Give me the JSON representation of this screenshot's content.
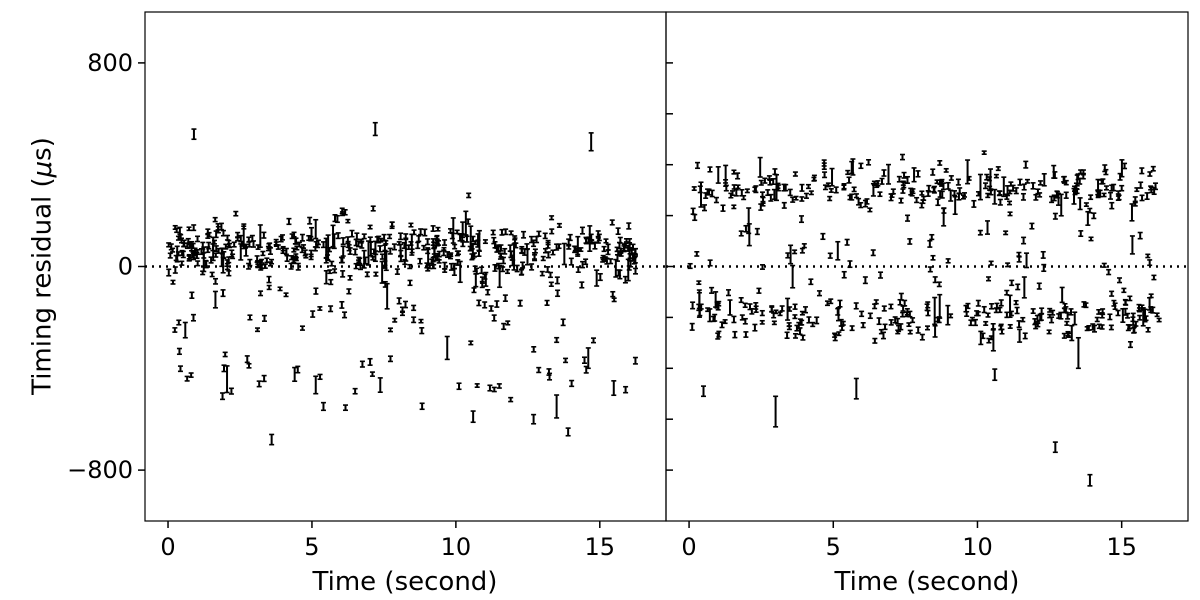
{
  "chart_data": {
    "type": "scatter",
    "title": "",
    "ylabel": "Timing residual (μs)",
    "xlabel": "Time (second)",
    "ylim": [
      -1000,
      1000
    ],
    "xlim": [
      -0.8,
      17.3
    ],
    "yticks": [
      800,
      0,
      -800
    ],
    "ytick_labels": [
      "800",
      "0",
      "−800"
    ],
    "xticks": [
      0,
      5,
      10,
      15
    ],
    "xtick_labels": [
      "0",
      "5",
      "10",
      "15"
    ],
    "grid": false,
    "reference_line": 0,
    "marker": "error bars (no central marker)",
    "panels": [
      {
        "name": "",
        "description": "single cluster near zero with a low tail",
        "random_seed": 7,
        "n_points": 560,
        "x_range": [
          0,
          16.3
        ],
        "distribution": [
          {
            "weight": 0.8,
            "mean": 60,
            "sd": 55
          },
          {
            "weight": 0.12,
            "mean": -150,
            "sd": 70
          },
          {
            "weight": 0.08,
            "mean": -430,
            "sd": 50
          }
        ],
        "error_half_width_typical": 10,
        "outliers": [
          {
            "x": 0.9,
            "y": 520,
            "err": 20
          },
          {
            "x": 7.2,
            "y": 540,
            "err": 25
          },
          {
            "x": 14.7,
            "y": 490,
            "err": 35
          },
          {
            "x": 3.6,
            "y": -680,
            "err": 20
          },
          {
            "x": 5.4,
            "y": -550,
            "err": 15
          },
          {
            "x": 6.5,
            "y": -490,
            "err": 10
          },
          {
            "x": 10.6,
            "y": -590,
            "err": 22
          },
          {
            "x": 12.7,
            "y": -600,
            "err": 18
          },
          {
            "x": 13.5,
            "y": -550,
            "err": 45
          },
          {
            "x": 13.9,
            "y": -650,
            "err": 15
          },
          {
            "x": 14.6,
            "y": -360,
            "err": 40
          },
          {
            "x": 0.6,
            "y": -250,
            "err": 30
          },
          {
            "x": 9.7,
            "y": -320,
            "err": 45
          }
        ]
      },
      {
        "name": "",
        "description": "two bands: upper near +300 and lower near -200",
        "random_seed": 13,
        "n_points": 540,
        "x_range": [
          0,
          16.3
        ],
        "distribution": [
          {
            "weight": 0.42,
            "mean": 310,
            "sd": 45
          },
          {
            "weight": 0.42,
            "mean": -205,
            "sd": 45
          },
          {
            "weight": 0.16,
            "mean": 40,
            "sd": 130
          }
        ],
        "error_half_width_typical": 10,
        "outliers": [
          {
            "x": 0.5,
            "y": -490,
            "err": 20
          },
          {
            "x": 3.0,
            "y": -570,
            "err": 60
          },
          {
            "x": 5.8,
            "y": -480,
            "err": 40
          },
          {
            "x": 10.6,
            "y": -425,
            "err": 22
          },
          {
            "x": 12.7,
            "y": -710,
            "err": 20
          },
          {
            "x": 13.9,
            "y": -840,
            "err": 22
          },
          {
            "x": 13.5,
            "y": -340,
            "err": 60
          },
          {
            "x": 7.4,
            "y": 430,
            "err": 10
          },
          {
            "x": 15.1,
            "y": 395,
            "err": 10
          }
        ]
      }
    ]
  }
}
